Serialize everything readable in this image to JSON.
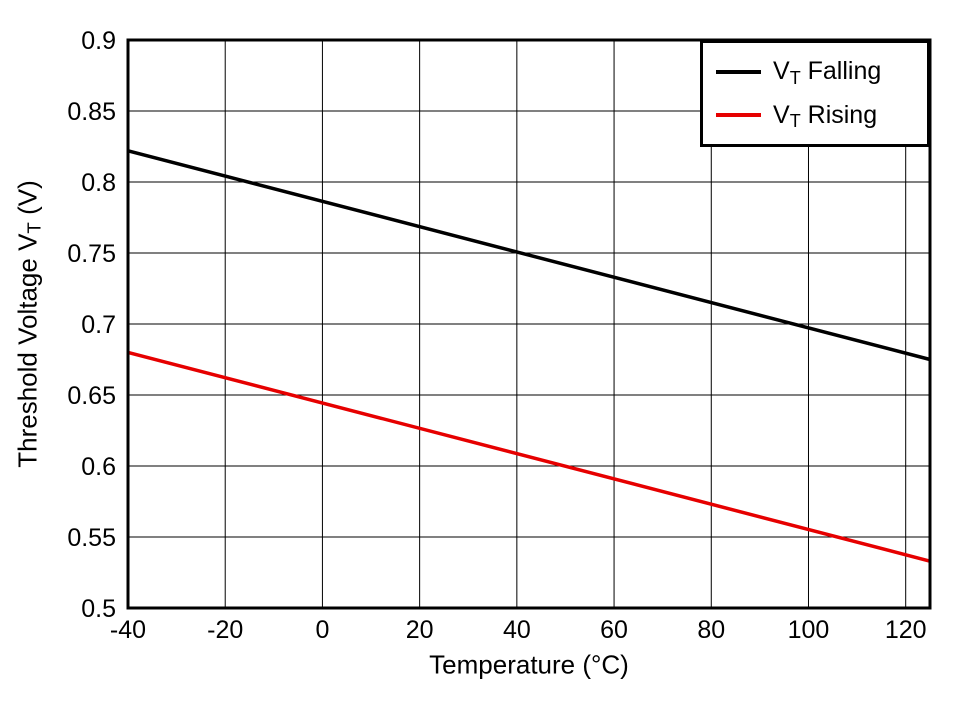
{
  "chart_data": {
    "type": "line",
    "title": "",
    "xlabel": "Temperature (°C)",
    "ylabel_pre": "Threshold Voltage V",
    "ylabel_sub": "T",
    "ylabel_post": " (V)",
    "xlim": [
      -40,
      125
    ],
    "ylim": [
      0.5,
      0.9
    ],
    "grid": true,
    "grid_color": "#000000",
    "axis_color": "#000000",
    "background_color": "#ffffff",
    "legend_position": "top-right",
    "x_ticks": [
      {
        "v": -40,
        "label": "-40"
      },
      {
        "v": -20,
        "label": "-20"
      },
      {
        "v": 0,
        "label": "0"
      },
      {
        "v": 20,
        "label": "20"
      },
      {
        "v": 40,
        "label": "40"
      },
      {
        "v": 60,
        "label": "60"
      },
      {
        "v": 80,
        "label": "80"
      },
      {
        "v": 100,
        "label": "100"
      },
      {
        "v": 120,
        "label": "120"
      }
    ],
    "y_ticks": [
      {
        "v": 0.5,
        "label": "0.5"
      },
      {
        "v": 0.55,
        "label": "0.55"
      },
      {
        "v": 0.6,
        "label": "0.6"
      },
      {
        "v": 0.65,
        "label": "0.65"
      },
      {
        "v": 0.7,
        "label": "0.7"
      },
      {
        "v": 0.75,
        "label": "0.75"
      },
      {
        "v": 0.8,
        "label": "0.8"
      },
      {
        "v": 0.85,
        "label": "0.85"
      },
      {
        "v": 0.9,
        "label": "0.9"
      }
    ],
    "series": [
      {
        "name": "VT Falling",
        "label_pre": "V",
        "label_sub": "T",
        "label_post": " Falling",
        "color": "#000000",
        "x": [
          -40,
          125
        ],
        "y": [
          0.822,
          0.675
        ]
      },
      {
        "name": "VT Rising",
        "label_pre": "V",
        "label_sub": "T",
        "label_post": " Rising",
        "color": "#e60000",
        "x": [
          -40,
          125
        ],
        "y": [
          0.68,
          0.533
        ]
      }
    ]
  }
}
